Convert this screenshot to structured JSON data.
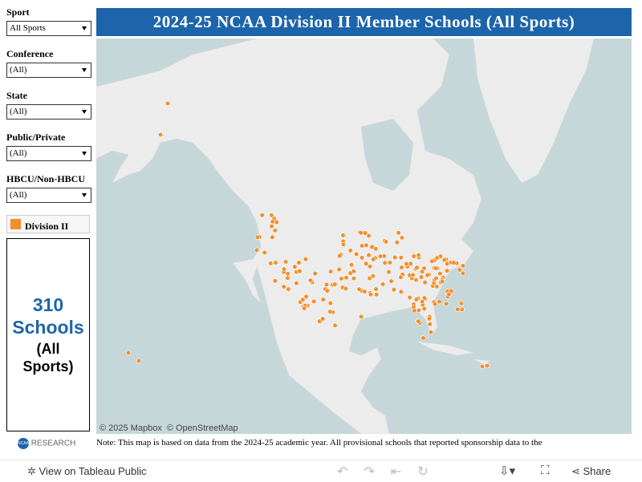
{
  "header": {
    "title": "2024-25 NCAA Division II Member Schools (All Sports)"
  },
  "filters": [
    {
      "label": "Sport",
      "value": "All Sports"
    },
    {
      "label": "Conference",
      "value": "(All)"
    },
    {
      "label": "State",
      "value": "(All)"
    },
    {
      "label": "Public/Private",
      "value": "(All)"
    },
    {
      "label": "HBCU/Non-HBCU",
      "value": "(All)"
    }
  ],
  "legend": {
    "label": "Division II",
    "color": "#f28e2b"
  },
  "summary": {
    "count": 310,
    "unit": "Schools",
    "scope": "(All Sports)"
  },
  "map": {
    "attribution": [
      "© 2025 Mapbox",
      "© OpenStreetMap"
    ]
  },
  "logo": {
    "brand": "NCAA",
    "label": "RESEARCH"
  },
  "note": "Note: This map is based on data from the 2024-25 academic year. All provisional schools that reported sponsorship data to the",
  "toolbar": {
    "view": "View on Tableau Public",
    "share": "Share"
  }
}
